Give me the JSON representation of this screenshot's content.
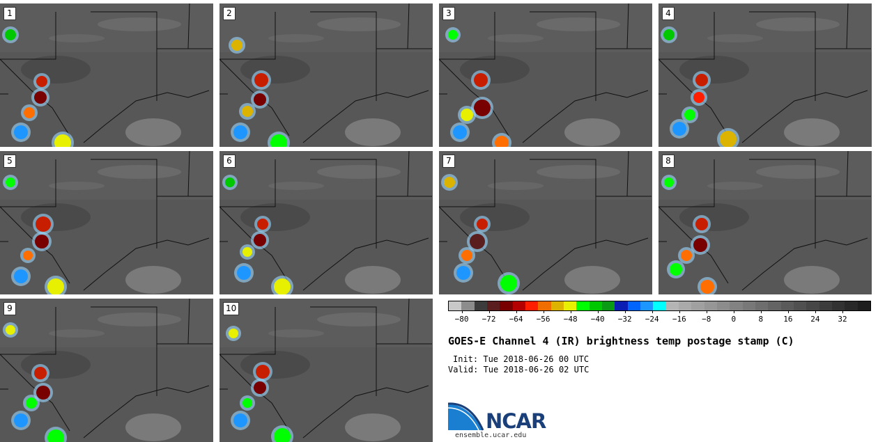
{
  "panels": [
    {
      "label": "1"
    },
    {
      "label": "2"
    },
    {
      "label": "3"
    },
    {
      "label": "4"
    },
    {
      "label": "5"
    },
    {
      "label": "6"
    },
    {
      "label": "7"
    },
    {
      "label": "8"
    },
    {
      "label": "9"
    },
    {
      "label": "10"
    }
  ],
  "colorbar": {
    "colors": [
      "#c8c8c8",
      "#8c8c8c",
      "#3c3c3c",
      "#5a1e1e",
      "#780000",
      "#b40000",
      "#ff1e00",
      "#f06e00",
      "#dcb400",
      "#e6f000",
      "#00ff00",
      "#00c800",
      "#0a9a14",
      "#0a1eb4",
      "#0064ff",
      "#1e96ff",
      "#00ffff",
      "#b4b4b4",
      "#aaaaaa",
      "#a0a0a0",
      "#969696",
      "#8c8c8c",
      "#828282",
      "#787878",
      "#6e6e6e",
      "#646464",
      "#5a5a5a",
      "#505050",
      "#464646",
      "#3c3c3c",
      "#323232",
      "#282828",
      "#1e1e1e"
    ],
    "tick_labels": [
      "-80",
      "-72",
      "-64",
      "-56",
      "-48",
      "-40",
      "-32",
      "-24",
      "-16",
      "-8",
      "0",
      "8",
      "16",
      "24",
      "32"
    ],
    "min": -84,
    "max": 40
  },
  "title": "GOES-E Channel 4 (IR) brightness temp postage stamp (C)",
  "init": "Init: Tue 2018-06-26 00 UTC",
  "valid": "Valid: Tue 2018-06-26 02 UTC",
  "logo_text": "NCAR",
  "site": "ensemble.ucar.edu"
}
